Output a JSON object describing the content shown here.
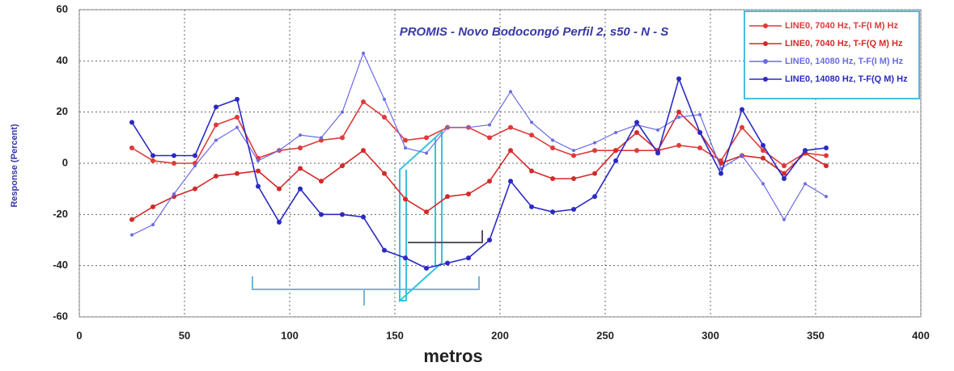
{
  "chart_data": {
    "type": "line",
    "title": "PROMIS - Novo Bodocongó Perfil 2, s50 - N - S",
    "x_label": "metros",
    "y_label": "Response (Percent)",
    "x": [
      25,
      35,
      45,
      55,
      65,
      75,
      85,
      95,
      105,
      115,
      125,
      135,
      145,
      155,
      165,
      175,
      185,
      195,
      205,
      215,
      225,
      235,
      245,
      255,
      265,
      275,
      285,
      295,
      305,
      315,
      325,
      335,
      345,
      355
    ],
    "series": [
      {
        "name": "LINE0, 7040 Hz, T-F(I M) Hz",
        "color": "#e03a3a",
        "values": [
          6,
          1,
          0,
          0,
          15,
          18,
          2,
          5,
          6,
          9,
          10,
          24,
          18,
          9,
          10,
          14,
          14,
          10,
          14,
          11,
          6,
          3,
          5,
          5,
          5,
          5,
          7,
          6,
          1,
          14,
          5,
          -1,
          4,
          3
        ]
      },
      {
        "name": "LINE0, 7040 Hz, T-F(Q M) Hz",
        "color": "#d42a2a",
        "values": [
          -22,
          -17,
          -13,
          -10,
          -5,
          -4,
          -3,
          -10,
          -2,
          -7,
          -1,
          5,
          -4,
          -14,
          -19,
          -13,
          -12,
          -7,
          5,
          -3,
          -6,
          -6,
          -4,
          5,
          12,
          5,
          20,
          12,
          0,
          3,
          2,
          -4,
          4,
          -1
        ]
      },
      {
        "name": "LINE0, 14080 Hz, T-F(I M) Hz",
        "color": "#6b6be6",
        "values": [
          -28,
          -24,
          -12,
          -1,
          9,
          14,
          1,
          5,
          11,
          10,
          20,
          43,
          25,
          6,
          4,
          14,
          14,
          15,
          28,
          16,
          9,
          5,
          8,
          12,
          15,
          13,
          18,
          19,
          -2,
          3,
          -8,
          -22,
          -8,
          -13
        ]
      },
      {
        "name": "LINE0, 14080 Hz, T-F(Q M) Hz",
        "color": "#2a2ac4",
        "values": [
          16,
          3,
          3,
          3,
          22,
          25,
          -9,
          -23,
          -10,
          -20,
          -20,
          -21,
          -34,
          -37,
          -41,
          -39,
          -37,
          -30,
          -7,
          -17,
          -19,
          -18,
          -13,
          1,
          16,
          4,
          33,
          12,
          -4,
          21,
          7,
          -6,
          5,
          6
        ]
      }
    ],
    "xlim": [
      0,
      400
    ],
    "xticks": [
      0,
      50,
      100,
      150,
      200,
      250,
      300,
      350,
      400
    ],
    "ylim": [
      -60,
      60
    ],
    "yticks": [
      -60,
      -40,
      -20,
      0,
      20,
      40,
      60
    ],
    "grid": true,
    "legend": "top-right"
  }
}
